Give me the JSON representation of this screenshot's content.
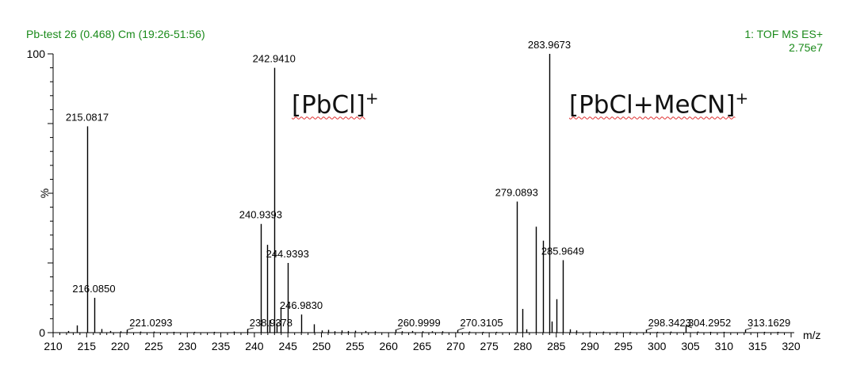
{
  "header": {
    "left": "Pb-test 26 (0.468) Cm (19:26-51:56)",
    "right_line1": "1: TOF MS ES+",
    "right_line2": "2.75e7",
    "color": "#1a8a1a"
  },
  "annotations": {
    "pbcl": {
      "bracket_text": "[PbCl]",
      "sup": "+"
    },
    "pbcl_mecn": {
      "bracket_text": "[PbCl+MeCN]",
      "sup": "+"
    }
  },
  "chart_data": {
    "type": "bar",
    "title": "",
    "xlabel": "m/z",
    "ylabel": "%",
    "xlim": [
      210,
      320
    ],
    "ylim": [
      0,
      100
    ],
    "xticks": [
      210,
      215,
      220,
      225,
      230,
      235,
      240,
      245,
      250,
      255,
      260,
      265,
      270,
      275,
      280,
      285,
      290,
      295,
      300,
      305,
      310,
      315,
      320
    ],
    "yticks": [
      0,
      100
    ],
    "grid": false,
    "peaks": [
      {
        "mz": 212.2,
        "intensity": 0.6
      },
      {
        "mz": 213.5,
        "intensity": 2.6
      },
      {
        "mz": 215.0817,
        "intensity": 74,
        "label": "215.0817"
      },
      {
        "mz": 216.085,
        "intensity": 12.5,
        "label": "216.0850"
      },
      {
        "mz": 217.2,
        "intensity": 1.3
      },
      {
        "mz": 218.5,
        "intensity": 0.6
      },
      {
        "mz": 220.0,
        "intensity": 0.5
      },
      {
        "mz": 221.0293,
        "intensity": 1.0,
        "label": "221.0293"
      },
      {
        "mz": 223.0,
        "intensity": 0.4
      },
      {
        "mz": 225.0,
        "intensity": 0.4
      },
      {
        "mz": 228.0,
        "intensity": 0.3
      },
      {
        "mz": 231.0,
        "intensity": 0.3
      },
      {
        "mz": 234.0,
        "intensity": 0.3
      },
      {
        "mz": 236.9,
        "intensity": 0.4
      },
      {
        "mz": 238.9378,
        "intensity": 1.2,
        "label": "238.9378"
      },
      {
        "mz": 240.9393,
        "intensity": 39,
        "label": "240.9393"
      },
      {
        "mz": 241.9,
        "intensity": 31.5
      },
      {
        "mz": 242.2,
        "intensity": 4.5
      },
      {
        "mz": 242.941,
        "intensity": 95,
        "label": "242.9410"
      },
      {
        "mz": 243.3,
        "intensity": 3.5
      },
      {
        "mz": 243.9,
        "intensity": 9
      },
      {
        "mz": 244.9393,
        "intensity": 25,
        "label": "244.9393"
      },
      {
        "mz": 246.983,
        "intensity": 6.5,
        "label": "246.9830"
      },
      {
        "mz": 248.9,
        "intensity": 3
      },
      {
        "mz": 250.0,
        "intensity": 0.8
      },
      {
        "mz": 251.0,
        "intensity": 1.0
      },
      {
        "mz": 252.0,
        "intensity": 0.5
      },
      {
        "mz": 253.0,
        "intensity": 0.8
      },
      {
        "mz": 254.0,
        "intensity": 0.6
      },
      {
        "mz": 255.0,
        "intensity": 0.7
      },
      {
        "mz": 256.5,
        "intensity": 0.6
      },
      {
        "mz": 258.0,
        "intensity": 0.5
      },
      {
        "mz": 260.9999,
        "intensity": 0.9,
        "label": "260.9999"
      },
      {
        "mz": 262.0,
        "intensity": 0.5
      },
      {
        "mz": 263.5,
        "intensity": 0.6
      },
      {
        "mz": 265.0,
        "intensity": 0.5
      },
      {
        "mz": 266.5,
        "intensity": 0.5
      },
      {
        "mz": 268.0,
        "intensity": 0.5
      },
      {
        "mz": 270.3105,
        "intensity": 0.9,
        "label": "270.3105"
      },
      {
        "mz": 272.0,
        "intensity": 0.4
      },
      {
        "mz": 274.0,
        "intensity": 0.3
      },
      {
        "mz": 276.0,
        "intensity": 0.3
      },
      {
        "mz": 279.0893,
        "intensity": 47,
        "label": "279.0893"
      },
      {
        "mz": 280.0,
        "intensity": 8.5
      },
      {
        "mz": 280.5,
        "intensity": 1.2
      },
      {
        "mz": 282.0,
        "intensity": 38
      },
      {
        "mz": 283.0,
        "intensity": 33
      },
      {
        "mz": 283.9673,
        "intensity": 100,
        "label": "283.9673"
      },
      {
        "mz": 284.3,
        "intensity": 4
      },
      {
        "mz": 285.0,
        "intensity": 12
      },
      {
        "mz": 285.9649,
        "intensity": 26,
        "label": "285.9649"
      },
      {
        "mz": 287.0,
        "intensity": 1.2
      },
      {
        "mz": 288.0,
        "intensity": 0.8
      },
      {
        "mz": 290.0,
        "intensity": 0.4
      },
      {
        "mz": 292.0,
        "intensity": 0.4
      },
      {
        "mz": 294.0,
        "intensity": 0.3
      },
      {
        "mz": 296.0,
        "intensity": 0.3
      },
      {
        "mz": 298.3423,
        "intensity": 0.9,
        "label": "298.3423"
      },
      {
        "mz": 300.0,
        "intensity": 0.3
      },
      {
        "mz": 302.0,
        "intensity": 0.4
      },
      {
        "mz": 304.2952,
        "intensity": 2.5,
        "label": "304.2952"
      },
      {
        "mz": 306.0,
        "intensity": 0.4
      },
      {
        "mz": 308.0,
        "intensity": 0.3
      },
      {
        "mz": 310.0,
        "intensity": 0.3
      },
      {
        "mz": 313.1629,
        "intensity": 1.0,
        "label": "313.1629"
      },
      {
        "mz": 316.0,
        "intensity": 0.3
      },
      {
        "mz": 318.0,
        "intensity": 0.3
      }
    ]
  }
}
